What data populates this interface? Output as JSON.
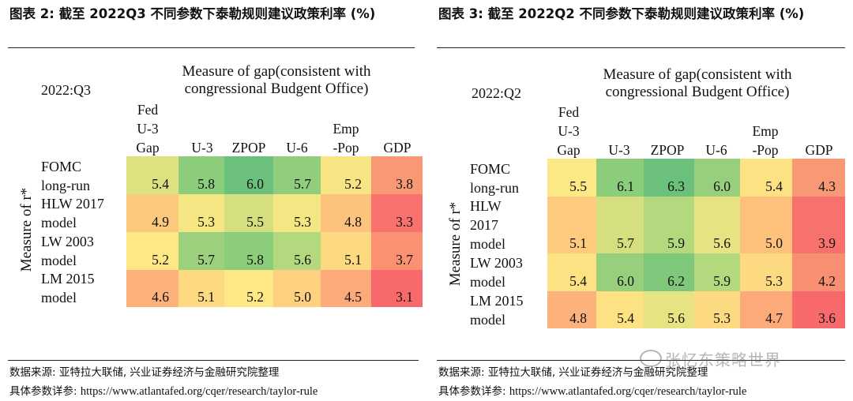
{
  "left": {
    "title": "图表 2:  截至 2022Q3 不同参数下泰勒规则建议政策利率 (%)",
    "heading_lines": [
      "Measure of gap(consistent with",
      "congressional Budgent Office)"
    ],
    "period": "2022:Q3",
    "y_axis_label": "Measure of r*",
    "columns": [
      {
        "lines": [
          "Fed",
          "U-3",
          "Gap"
        ]
      },
      {
        "lines": [
          "U-3"
        ]
      },
      {
        "lines": [
          "ZPOP"
        ]
      },
      {
        "lines": [
          "U-6"
        ]
      },
      {
        "lines": [
          "Emp",
          "-Pop"
        ]
      },
      {
        "lines": [
          "GDP"
        ]
      }
    ],
    "rows": [
      {
        "lines": [
          "FOMC",
          "long-run"
        ],
        "values": [
          "5.4",
          "5.8",
          "6.0",
          "5.7",
          "5.2",
          "3.8"
        ],
        "colors": [
          "#dde17f",
          "#8ccd7b",
          "#6bc17b",
          "#90cd7c",
          "#f8e483",
          "#f99874"
        ]
      },
      {
        "lines": [
          "HLW 2017",
          "model"
        ],
        "values": [
          "4.9",
          "5.3",
          "5.5",
          "5.3",
          "4.8",
          "3.3"
        ],
        "colors": [
          "#fdc97e",
          "#f4e783",
          "#d5df80",
          "#f4e783",
          "#fdc27d",
          "#f8726d"
        ]
      },
      {
        "lines": [
          "LW 2003",
          "model"
        ],
        "values": [
          "5.2",
          "5.7",
          "5.8",
          "5.6",
          "5.1",
          "3.7"
        ],
        "colors": [
          "#fde885",
          "#9cd07c",
          "#8ccd7b",
          "#b4d87e",
          "#fdd982",
          "#f99172"
        ]
      },
      {
        "lines": [
          "LM 2015",
          "model"
        ],
        "values": [
          "4.6",
          "5.1",
          "5.2",
          "5.0",
          "4.5",
          "3.1"
        ],
        "colors": [
          "#fcb27a",
          "#fdd982",
          "#fde885",
          "#fdd17f",
          "#fcaa79",
          "#f8696b"
        ]
      }
    ]
  },
  "right": {
    "title": "图表 3:  截至 2022Q2 不同参数下泰勒规则建议政策利率 (%)",
    "heading_lines": [
      "Measure of gap(consistent with",
      "congressional Budgent Office)"
    ],
    "period": "2022:Q2",
    "y_axis_label": "Measure of r*",
    "columns": [
      {
        "lines": [
          "Fed",
          "U-3",
          "Gap"
        ]
      },
      {
        "lines": [
          "U-3"
        ]
      },
      {
        "lines": [
          "ZPOP"
        ]
      },
      {
        "lines": [
          "U-6"
        ]
      },
      {
        "lines": [
          "Emp",
          "-Pop"
        ]
      },
      {
        "lines": [
          "GDP"
        ]
      }
    ],
    "rows": [
      {
        "lines": [
          "FOMC",
          "long-run"
        ],
        "values": [
          "5.5",
          "6.1",
          "6.3",
          "6.0",
          "5.4",
          "4.3"
        ],
        "colors": [
          "#fde886",
          "#8ccd7b",
          "#6bc17b",
          "#98cf7c",
          "#fde283",
          "#f99874"
        ]
      },
      {
        "lines": [
          "HLW",
          "2017",
          "model"
        ],
        "values": [
          "5.1",
          "5.7",
          "5.9",
          "5.6",
          "5.0",
          "3.9"
        ],
        "colors": [
          "#fdca7e",
          "#d5df80",
          "#b4d87e",
          "#e5e382",
          "#fdc17c",
          "#f8726d"
        ]
      },
      {
        "lines": [
          "LW 2003",
          "model"
        ],
        "values": [
          "5.4",
          "6.0",
          "6.2",
          "5.9",
          "5.3",
          "4.2"
        ],
        "colors": [
          "#fde283",
          "#98cf7c",
          "#7fc87b",
          "#b4d87e",
          "#fdda81",
          "#f98f72"
        ]
      },
      {
        "lines": [
          "LM 2015",
          "model"
        ],
        "values": [
          "4.8",
          "5.4",
          "5.6",
          "5.3",
          "4.7",
          "3.6"
        ],
        "colors": [
          "#fcb27a",
          "#fde283",
          "#e5e382",
          "#fdda81",
          "#fcaa79",
          "#f8696b"
        ]
      }
    ]
  },
  "footer": {
    "source": "数据来源:  亚特拉大联储, 兴业证券经济与金融研究院整理",
    "params_label": "具体参数详参:",
    "url": "https://www.atlantafed.org/cqer/research/taylor-rule"
  },
  "watermark": "张忆东策略世界"
}
